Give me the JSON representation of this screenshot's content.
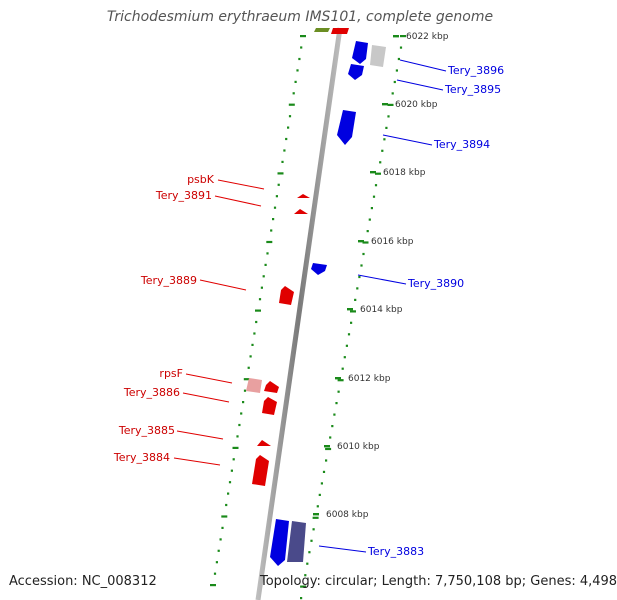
{
  "title": "Trichodesmium erythraeum IMS101, complete genome",
  "footer": {
    "accession": "Accession: NC_008312",
    "topology": "Topology: circular; Length: 7,750,108 bp; Genes: 4,498"
  },
  "colors": {
    "forward_gene": "#e00000",
    "reverse_gene": "#0000e0",
    "ruler_dots": "#1a8a1a",
    "backbone": "#888888",
    "pseudo_gene": "#4a4a8a"
  },
  "ruler_ticks": [
    "6008 kbp",
    "6010 kbp",
    "6012 kbp",
    "6014 kbp",
    "6016 kbp",
    "6018 kbp",
    "6020 kbp",
    "6022 kbp"
  ],
  "genes_left": [
    {
      "name": "psbK",
      "strand": "+"
    },
    {
      "name": "Tery_3891",
      "strand": "+"
    },
    {
      "name": "Tery_3889",
      "strand": "+"
    },
    {
      "name": "rpsF",
      "strand": "+"
    },
    {
      "name": "Tery_3886",
      "strand": "+"
    },
    {
      "name": "Tery_3885",
      "strand": "+"
    },
    {
      "name": "Tery_3884",
      "strand": "+"
    }
  ],
  "genes_right": [
    {
      "name": "Tery_3896",
      "strand": "-"
    },
    {
      "name": "Tery_3895",
      "strand": "-"
    },
    {
      "name": "Tery_3894",
      "strand": "-"
    },
    {
      "name": "Tery_3890",
      "strand": "-"
    },
    {
      "name": "Tery_3883",
      "strand": "-"
    }
  ]
}
